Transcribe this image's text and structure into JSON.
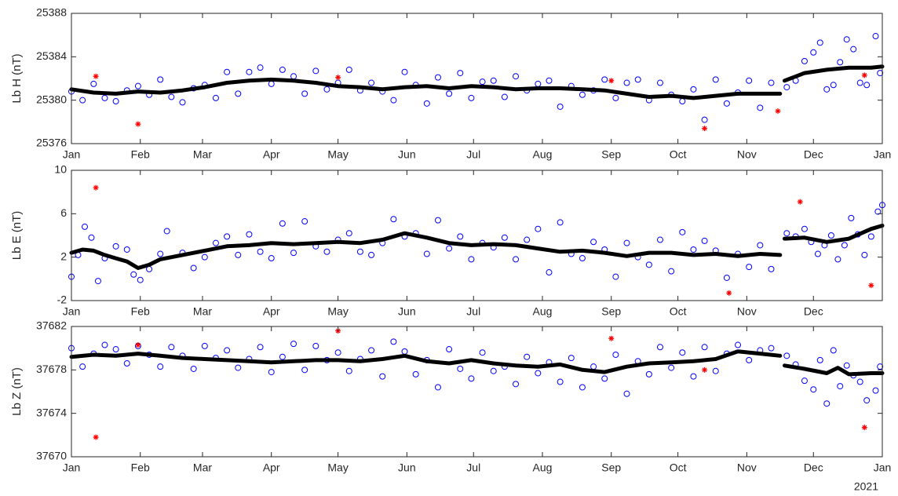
{
  "chart_data": [
    {
      "type": "scatter",
      "ylabel": "Lb H (nT)",
      "xlim": [
        0,
        365
      ],
      "xticks": [
        {
          "value": 0,
          "label": "Jan"
        },
        {
          "value": 31,
          "label": "Feb"
        },
        {
          "value": 59,
          "label": "Mar"
        },
        {
          "value": 90,
          "label": "Apr"
        },
        {
          "value": 120,
          "label": "May"
        },
        {
          "value": 151,
          "label": "Jun"
        },
        {
          "value": 181,
          "label": "Jul"
        },
        {
          "value": 212,
          "label": "Aug"
        },
        {
          "value": 243,
          "label": "Sep"
        },
        {
          "value": 273,
          "label": "Oct"
        },
        {
          "value": 304,
          "label": "Nov"
        },
        {
          "value": 334,
          "label": "Dec"
        },
        {
          "value": 365,
          "label": "Jan"
        }
      ],
      "ylim": [
        25376,
        25388
      ],
      "yticks": [
        25376,
        25380,
        25384,
        25388
      ],
      "series": [
        {
          "color": "#0000ff",
          "marker": "circle",
          "x": [
            0,
            5,
            10,
            15,
            20,
            25,
            30,
            35,
            40,
            45,
            50,
            55,
            60,
            65,
            70,
            75,
            80,
            85,
            90,
            95,
            100,
            105,
            110,
            115,
            120,
            125,
            130,
            135,
            140,
            145,
            150,
            155,
            160,
            165,
            170,
            175,
            180,
            185,
            190,
            195,
            200,
            205,
            210,
            215,
            220,
            225,
            230,
            235,
            240,
            245,
            250,
            255,
            260,
            265,
            270,
            275,
            280,
            285,
            290,
            295,
            300,
            305,
            310,
            315,
            322,
            326,
            330,
            334,
            337,
            340,
            343,
            346,
            349,
            352,
            355,
            358,
            362,
            364
          ],
          "values": [
            25380.8,
            25380.0,
            25381.5,
            25380.2,
            25379.9,
            25380.9,
            25381.3,
            25380.5,
            25381.9,
            25380.3,
            25379.8,
            25381.1,
            25381.4,
            25380.2,
            25382.6,
            25380.6,
            25382.6,
            25383.0,
            25381.5,
            25382.8,
            25382.2,
            25380.6,
            25382.7,
            25381.0,
            25381.6,
            25382.8,
            25380.9,
            25381.6,
            25380.8,
            25380.0,
            25382.6,
            25381.4,
            25379.7,
            25382.1,
            25380.6,
            25382.5,
            25380.2,
            25381.7,
            25381.8,
            25380.3,
            25382.2,
            25380.9,
            25381.5,
            25381.8,
            25379.4,
            25381.3,
            25380.5,
            25380.9,
            25381.9,
            25380.2,
            25381.6,
            25381.9,
            25380.0,
            25381.6,
            25380.5,
            25379.9,
            25381.0,
            25378.2,
            25381.9,
            25379.7,
            25380.7,
            25381.8,
            25379.3,
            25381.6,
            25381.2,
            25381.8,
            25383.6,
            25384.4,
            25385.3,
            25381.0,
            25381.4,
            25383.5,
            25385.6,
            25384.7,
            25381.6,
            25381.4,
            25385.9,
            25382.5
          ]
        },
        {
          "color": "#000000",
          "marker": "line",
          "x": [
            0,
            10,
            20,
            30,
            40,
            50,
            60,
            70,
            80,
            90,
            100,
            110,
            120,
            130,
            140,
            150,
            160,
            170,
            180,
            190,
            200,
            210,
            220,
            230,
            240,
            250,
            260,
            270,
            280,
            290,
            300,
            310,
            319,
            320,
            321,
            330,
            340,
            350,
            360,
            365
          ],
          "values": [
            25381.0,
            25380.7,
            25380.6,
            25380.8,
            25380.7,
            25380.9,
            25381.2,
            25381.6,
            25381.8,
            25381.9,
            25381.8,
            25381.6,
            25381.3,
            25381.2,
            25381.0,
            25381.2,
            25381.3,
            25381.1,
            25381.3,
            25381.2,
            25381.0,
            25381.1,
            25381.1,
            25381.0,
            25380.9,
            25380.6,
            25380.3,
            25380.4,
            25380.2,
            25380.4,
            25380.6,
            25380.6,
            25380.6,
            null,
            25381.8,
            25382.5,
            25382.8,
            25383.0,
            25383.0,
            25383.1
          ]
        },
        {
          "color": "#ff0000",
          "marker": "asterisk",
          "x": [
            11,
            30,
            120,
            243,
            285,
            318,
            357
          ],
          "values": [
            25382.2,
            25377.8,
            25382.1,
            25381.8,
            25377.4,
            25379.0,
            25382.3
          ]
        }
      ]
    },
    {
      "type": "scatter",
      "ylabel": "Lb E (nT)",
      "xlim": [
        0,
        365
      ],
      "xticks": [
        {
          "value": 0,
          "label": "Jan"
        },
        {
          "value": 31,
          "label": "Feb"
        },
        {
          "value": 59,
          "label": "Mar"
        },
        {
          "value": 90,
          "label": "Apr"
        },
        {
          "value": 120,
          "label": "May"
        },
        {
          "value": 151,
          "label": "Jun"
        },
        {
          "value": 181,
          "label": "Jul"
        },
        {
          "value": 212,
          "label": "Aug"
        },
        {
          "value": 243,
          "label": "Sep"
        },
        {
          "value": 273,
          "label": "Oct"
        },
        {
          "value": 304,
          "label": "Nov"
        },
        {
          "value": 334,
          "label": "Dec"
        }
      ],
      "ylim": [
        -2,
        10
      ],
      "yticks": [
        -2,
        2,
        6,
        10
      ],
      "series": [
        {
          "color": "#0000ff",
          "marker": "circle",
          "x": [
            0,
            3,
            6,
            9,
            12,
            15,
            20,
            25,
            28,
            31,
            35,
            40,
            43,
            50,
            55,
            60,
            65,
            70,
            75,
            80,
            85,
            90,
            95,
            100,
            105,
            110,
            115,
            120,
            125,
            130,
            135,
            140,
            145,
            150,
            155,
            160,
            165,
            170,
            175,
            180,
            185,
            190,
            195,
            200,
            205,
            210,
            215,
            220,
            225,
            230,
            235,
            240,
            245,
            250,
            255,
            260,
            265,
            270,
            275,
            280,
            285,
            290,
            295,
            300,
            305,
            310,
            315,
            322,
            326,
            330,
            333,
            336,
            339,
            342,
            345,
            348,
            351,
            354,
            357,
            360,
            363,
            365
          ],
          "values": [
            0.2,
            2.2,
            4.8,
            3.8,
            -0.2,
            1.9,
            3.0,
            2.7,
            0.4,
            -0.1,
            0.9,
            2.3,
            4.4,
            2.4,
            1.0,
            2.0,
            3.3,
            3.9,
            2.2,
            4.1,
            2.5,
            1.9,
            5.1,
            2.4,
            5.3,
            3.0,
            2.5,
            3.6,
            4.2,
            2.5,
            2.2,
            3.3,
            5.5,
            3.9,
            4.2,
            2.3,
            5.4,
            2.8,
            3.9,
            1.8,
            3.3,
            2.9,
            3.8,
            1.8,
            3.6,
            4.6,
            0.6,
            5.2,
            2.3,
            1.9,
            3.4,
            2.7,
            0.2,
            3.3,
            2.0,
            1.3,
            3.6,
            0.7,
            4.3,
            2.7,
            3.5,
            2.6,
            0.1,
            2.3,
            1.1,
            3.1,
            0.9,
            4.2,
            3.9,
            4.6,
            3.4,
            2.3,
            3.1,
            4.0,
            1.8,
            3.1,
            5.6,
            4.1,
            2.2,
            3.9,
            6.2,
            6.8
          ]
        },
        {
          "color": "#000000",
          "marker": "line",
          "x": [
            0,
            5,
            10,
            15,
            20,
            25,
            30,
            35,
            40,
            50,
            60,
            70,
            80,
            90,
            100,
            110,
            120,
            130,
            140,
            150,
            160,
            170,
            180,
            190,
            200,
            210,
            220,
            230,
            240,
            250,
            260,
            270,
            280,
            290,
            300,
            310,
            319,
            320,
            321,
            330,
            340,
            350,
            360,
            365
          ],
          "values": [
            2.4,
            2.7,
            2.6,
            2.2,
            1.9,
            1.6,
            1.0,
            1.3,
            1.8,
            2.2,
            2.6,
            3.0,
            3.1,
            3.3,
            3.2,
            3.3,
            3.4,
            3.3,
            3.6,
            4.2,
            3.8,
            3.3,
            3.1,
            3.2,
            3.1,
            2.8,
            2.5,
            2.6,
            2.4,
            2.1,
            2.4,
            2.4,
            2.2,
            2.3,
            2.1,
            2.3,
            2.2,
            null,
            3.7,
            3.8,
            3.4,
            3.7,
            4.6,
            4.9
          ]
        },
        {
          "color": "#ff0000",
          "marker": "asterisk",
          "x": [
            11,
            296,
            328,
            360
          ],
          "values": [
            8.4,
            -1.3,
            7.1,
            -0.6
          ]
        }
      ]
    },
    {
      "type": "scatter",
      "ylabel": "Lb Z (nT)",
      "annotation": "2021",
      "xlim": [
        0,
        365
      ],
      "xticks": [
        {
          "value": 0,
          "label": "Jan"
        },
        {
          "value": 31,
          "label": "Feb"
        },
        {
          "value": 59,
          "label": "Mar"
        },
        {
          "value": 90,
          "label": "Apr"
        },
        {
          "value": 120,
          "label": "May"
        },
        {
          "value": 151,
          "label": "Jun"
        },
        {
          "value": 181,
          "label": "Jul"
        },
        {
          "value": 212,
          "label": "Aug"
        },
        {
          "value": 243,
          "label": "Sep"
        },
        {
          "value": 273,
          "label": "Oct"
        },
        {
          "value": 304,
          "label": "Nov"
        },
        {
          "value": 334,
          "label": "Dec"
        },
        {
          "value": 365,
          "label": "Jan"
        }
      ],
      "ylim": [
        37670,
        37682
      ],
      "yticks": [
        37670,
        37674,
        37678,
        37682
      ],
      "series": [
        {
          "color": "#0000ff",
          "marker": "circle",
          "x": [
            0,
            5,
            10,
            15,
            20,
            25,
            30,
            35,
            40,
            45,
            50,
            55,
            60,
            65,
            70,
            75,
            80,
            85,
            90,
            95,
            100,
            105,
            110,
            115,
            120,
            125,
            130,
            135,
            140,
            145,
            150,
            155,
            160,
            165,
            170,
            175,
            180,
            185,
            190,
            195,
            200,
            205,
            210,
            215,
            220,
            225,
            230,
            235,
            240,
            245,
            250,
            255,
            260,
            265,
            270,
            275,
            280,
            285,
            290,
            295,
            300,
            305,
            310,
            315,
            322,
            326,
            330,
            334,
            337,
            340,
            343,
            346,
            349,
            352,
            355,
            358,
            362,
            364
          ],
          "values": [
            37680.0,
            37678.3,
            37679.5,
            37680.3,
            37679.9,
            37678.6,
            37680.2,
            37679.4,
            37678.3,
            37680.1,
            37679.3,
            37678.1,
            37680.2,
            37679.1,
            37679.8,
            37678.2,
            37679.0,
            37680.1,
            37677.8,
            37679.2,
            37680.4,
            37678.0,
            37680.2,
            37678.9,
            37679.6,
            37677.9,
            37679.0,
            37679.8,
            37677.4,
            37680.6,
            37679.7,
            37677.6,
            37678.9,
            37676.4,
            37679.9,
            37678.1,
            37677.2,
            37679.6,
            37677.9,
            37678.3,
            37676.7,
            37679.2,
            37677.7,
            37678.7,
            37676.9,
            37679.1,
            37676.4,
            37678.3,
            37677.2,
            37679.4,
            37675.8,
            37678.8,
            37677.6,
            37680.1,
            37678.2,
            37679.6,
            37677.4,
            37680.1,
            37677.9,
            37679.5,
            37680.3,
            37678.9,
            37679.8,
            37680.0,
            37679.3,
            37678.5,
            37677.0,
            37676.2,
            37678.9,
            37674.9,
            37679.8,
            37676.5,
            37678.4,
            37677.5,
            37676.9,
            37675.2,
            37676.1,
            37678.3
          ]
        },
        {
          "color": "#000000",
          "marker": "line",
          "x": [
            0,
            10,
            20,
            30,
            40,
            50,
            60,
            70,
            80,
            90,
            100,
            110,
            120,
            130,
            140,
            150,
            160,
            170,
            180,
            190,
            200,
            210,
            220,
            230,
            240,
            250,
            260,
            270,
            280,
            290,
            300,
            310,
            319,
            320,
            321,
            330,
            340,
            345,
            350,
            360,
            365
          ],
          "values": [
            37679.2,
            37679.4,
            37679.3,
            37679.5,
            37679.3,
            37679.1,
            37679.0,
            37678.9,
            37678.8,
            37678.7,
            37678.8,
            37678.9,
            37678.9,
            37678.8,
            37679.0,
            37679.3,
            37678.8,
            37678.6,
            37678.9,
            37678.6,
            37678.4,
            37678.3,
            37678.5,
            37678.0,
            37677.8,
            37678.3,
            37678.6,
            37678.7,
            37678.8,
            37679.0,
            37679.7,
            37679.5,
            37679.3,
            null,
            37678.4,
            37678.1,
            37677.7,
            37678.2,
            37677.6,
            37677.7,
            37677.7
          ]
        },
        {
          "color": "#ff0000",
          "marker": "asterisk",
          "x": [
            11,
            30,
            120,
            243,
            285,
            357
          ],
          "values": [
            37671.8,
            37680.3,
            37681.6,
            37680.9,
            37678.0,
            37672.7
          ]
        }
      ]
    }
  ]
}
